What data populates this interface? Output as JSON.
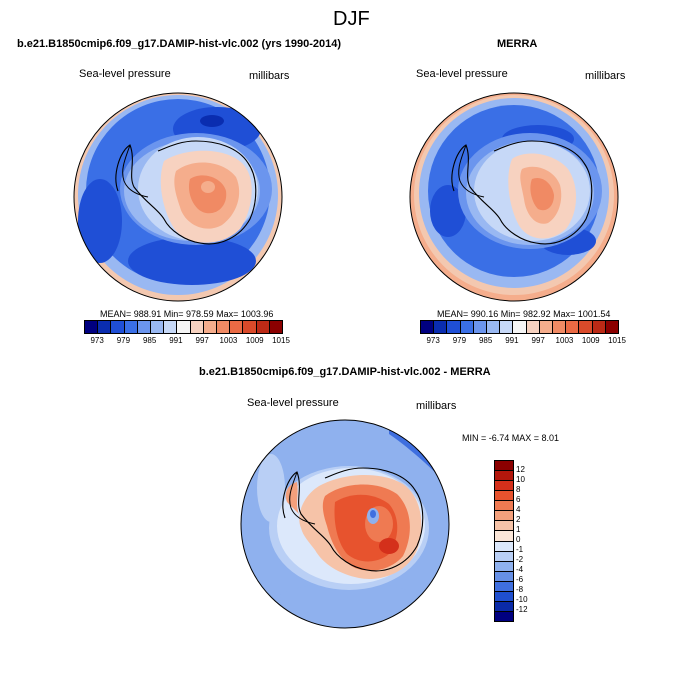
{
  "figure": {
    "title": "DJF",
    "panel_top_left": {
      "header": "b.e21.B1850cmip6.f09_g17.DAMIP-hist-vlc.002 (yrs 1990-2014)",
      "field": "Sea-level pressure",
      "units": "millibars",
      "stats": "MEAN= 988.91   Min= 978.59   Max= 1003.96"
    },
    "panel_top_right": {
      "header": "MERRA",
      "field": "Sea-level pressure",
      "units": "millibars",
      "stats": "MEAN= 990.16   Min= 982.92   Max= 1001.54"
    },
    "panel_bottom": {
      "header": "b.e21.B1850cmip6.f09_g17.DAMIP-hist-vlc.002 - MERRA",
      "field": "Sea-level pressure",
      "units": "millibars",
      "stats": "MIN =  -6.74 MAX =   8.01"
    }
  },
  "colorbar_pressure": {
    "labels": [
      "973",
      "979",
      "985",
      "991",
      "997",
      "1003",
      "1009",
      "1015"
    ],
    "colors": [
      "#000080",
      "#0a2db0",
      "#1f4fd6",
      "#3a6fe6",
      "#6b95ee",
      "#99b8f2",
      "#c6d8f7",
      "#f5f5f5",
      "#f7d2c0",
      "#f5ad8c",
      "#f08a64",
      "#ea6a44",
      "#d94a2a",
      "#bb2a16",
      "#8b0000"
    ]
  },
  "colorbar_diff": {
    "labels": [
      "12",
      "10",
      "8",
      "6",
      "4",
      "2",
      "1",
      "0",
      "-1",
      "-2",
      "-4",
      "-6",
      "-8",
      "-10",
      "-12"
    ],
    "colors": [
      "#8b0000",
      "#b3170c",
      "#d4301b",
      "#e7532e",
      "#ef7a52",
      "#f3a07c",
      "#f6c3a8",
      "#fbe6d8",
      "#dce8fb",
      "#b9cff5",
      "#8fb1ee",
      "#6690e6",
      "#3f6fdf",
      "#1f4fcf",
      "#0a2aa8",
      "#000080"
    ]
  },
  "map_colors": {
    "deep": "#3f6fdf",
    "mid": "#6b95ee",
    "light": "#a9c3f3",
    "pale": "#d8e4f8",
    "ring": "#f3c8b0",
    "warm": "#f5ad8c",
    "warmer": "#f08a64",
    "hot": "#e05a38",
    "diffbg": "#7ea2ea"
  }
}
